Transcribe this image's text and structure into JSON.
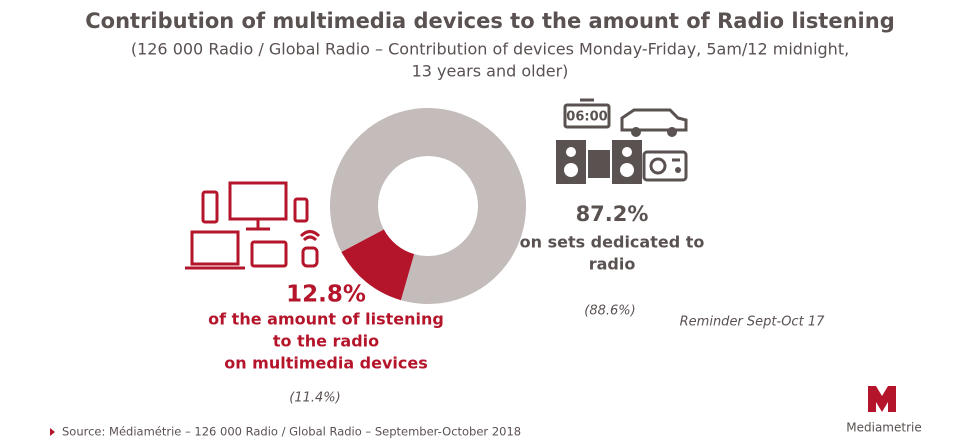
{
  "chart_data": {
    "type": "pie",
    "donut": true,
    "title": "Contribution of multimedia devices to the amount of Radio listening",
    "subtitle": [
      "(126 000 Radio / Global Radio – Contribution of devices Monday-Friday, 5am/12 midnight,",
      "13 years and older)"
    ],
    "categories": [
      [
        "of the amount of listening",
        "to the radio",
        "on multimedia devices"
      ],
      [
        "on sets dedicated to",
        "radio"
      ]
    ],
    "values": [
      12.8,
      87.2
    ],
    "value_labels": [
      "12.8%",
      "87.2%"
    ],
    "colors": [
      "#b5152b",
      "#c3bcbb"
    ],
    "reminder": {
      "label": "Reminder Sept-Oct 17",
      "values": [
        11.4,
        88.6
      ],
      "value_labels": [
        "(11.4%)",
        "(88.6%)"
      ]
    },
    "clock_text": "06:00",
    "source": "Source: Médiamétrie – 126 000 Radio / Global Radio – September-October 2018",
    "logo": "Mediametrie"
  }
}
